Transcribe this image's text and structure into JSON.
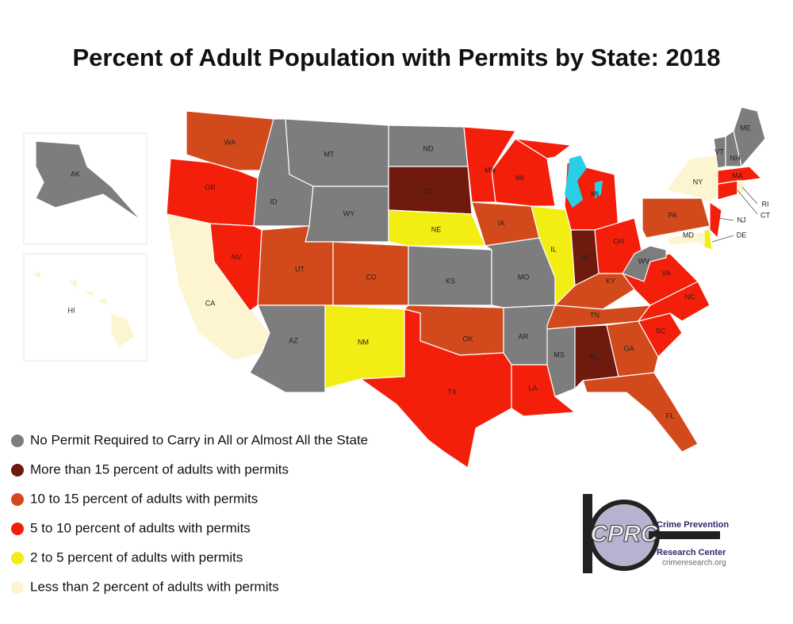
{
  "title": "Percent of Adult Population with Permits by State: 2018",
  "legend": [
    {
      "label": "No Permit Required to Carry in All or Almost All the State",
      "color": "#7d7d7d"
    },
    {
      "label": "More than 15 percent of adults with permits",
      "color": "#6e1b0e"
    },
    {
      "label": "10 to 15 percent of adults with permits",
      "color": "#d24a1c"
    },
    {
      "label": "5 to 10 percent of adults with permits",
      "color": "#f41f0a"
    },
    {
      "label": "2 to 5 percent of adults with permits",
      "color": "#f2ee14"
    },
    {
      "label": "Less than 2 percent of adults with permits",
      "color": "#fdf5cf"
    }
  ],
  "states": [
    {
      "label": "WA",
      "category": 2
    },
    {
      "label": "OR",
      "category": 3
    },
    {
      "label": "CA",
      "category": 5
    },
    {
      "label": "NV",
      "category": 3
    },
    {
      "label": "ID",
      "category": 0
    },
    {
      "label": "MT",
      "category": 0
    },
    {
      "label": "WY",
      "category": 0
    },
    {
      "label": "UT",
      "category": 2
    },
    {
      "label": "CO",
      "category": 2
    },
    {
      "label": "AZ",
      "category": 0
    },
    {
      "label": "NM",
      "category": 4
    },
    {
      "label": "ND",
      "category": 0
    },
    {
      "label": "SD",
      "category": 1
    },
    {
      "label": "NE",
      "category": 4
    },
    {
      "label": "KS",
      "category": 0
    },
    {
      "label": "OK",
      "category": 2
    },
    {
      "label": "TX",
      "category": 3
    },
    {
      "label": "MN",
      "category": 3
    },
    {
      "label": "IA",
      "category": 2
    },
    {
      "label": "MO",
      "category": 0
    },
    {
      "label": "AR",
      "category": 0
    },
    {
      "label": "LA",
      "category": 3
    },
    {
      "label": "WI",
      "category": 3
    },
    {
      "label": "IL",
      "category": 4
    },
    {
      "label": "MI",
      "category": 3
    },
    {
      "label": "IN",
      "category": 1
    },
    {
      "label": "OH",
      "category": 3
    },
    {
      "label": "KY",
      "category": 2
    },
    {
      "label": "TN",
      "category": 2
    },
    {
      "label": "MS",
      "category": 0
    },
    {
      "label": "AL",
      "category": 1
    },
    {
      "label": "GA",
      "category": 2
    },
    {
      "label": "FL",
      "category": 2
    },
    {
      "label": "SC",
      "category": 3
    },
    {
      "label": "NC",
      "category": 3
    },
    {
      "label": "VA",
      "category": 3
    },
    {
      "label": "WV",
      "category": 0
    },
    {
      "label": "PA",
      "category": 2
    },
    {
      "label": "NY",
      "category": 5
    },
    {
      "label": "MD",
      "category": 5
    },
    {
      "label": "DE",
      "category": 4
    },
    {
      "label": "NJ",
      "category": 3
    },
    {
      "label": "CT",
      "category": 3
    },
    {
      "label": "RI",
      "category": 5
    },
    {
      "label": "MA",
      "category": 3
    },
    {
      "label": "VT",
      "category": 0
    },
    {
      "label": "NH",
      "category": 0
    },
    {
      "label": "ME",
      "category": 0
    },
    {
      "label": "AK",
      "category": 0
    },
    {
      "label": "HI",
      "category": 5
    }
  ],
  "logo": {
    "mark": "CPRC",
    "line1": "Crime Prevention",
    "line2": "Research Center",
    "url": "crimeresearch.org"
  }
}
